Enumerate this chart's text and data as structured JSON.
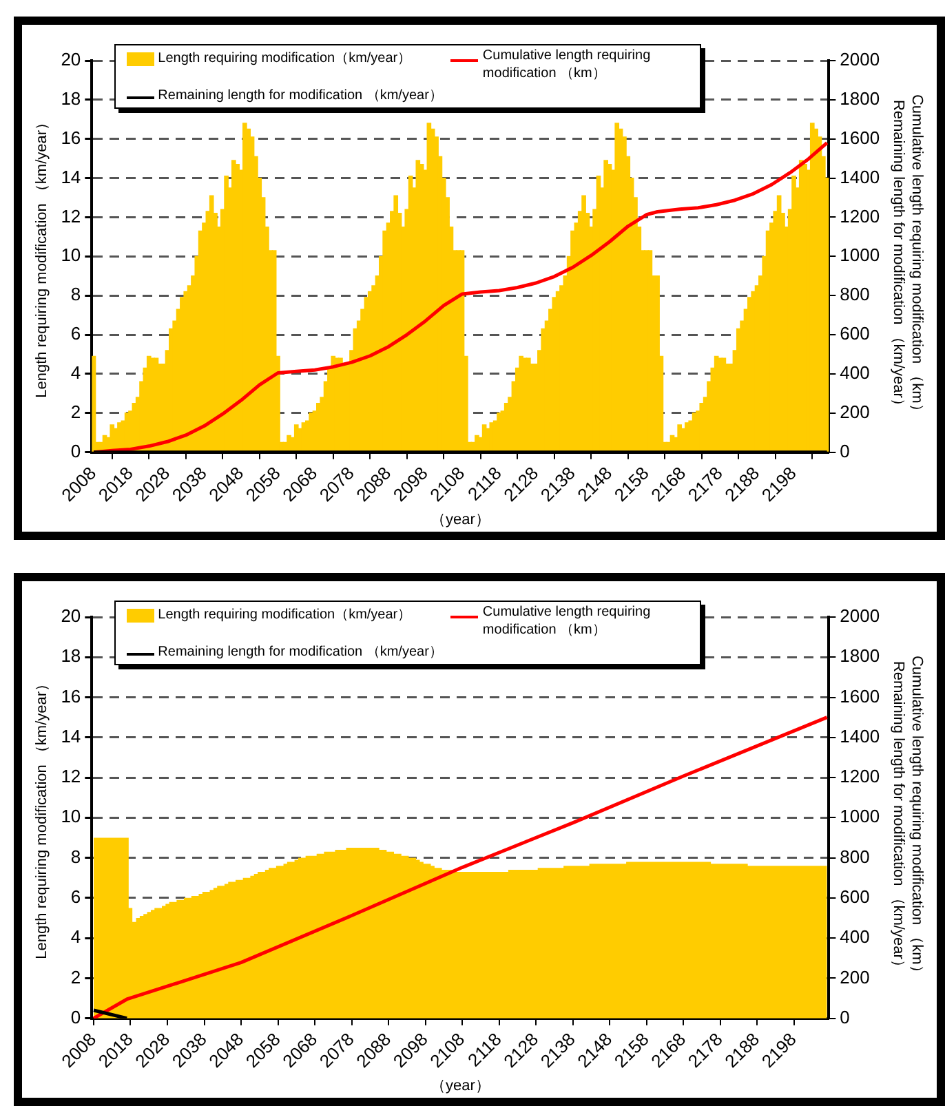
{
  "chart_data": [
    {
      "type": "bar",
      "xlabel": "（year）",
      "ylabel": "Length requiring modification （km/year）",
      "y2label": "Cumulative length requiring modification （km）\nRemaining length for modification （km/year）",
      "x": [
        2008,
        2009,
        2010,
        2011,
        2012,
        2013,
        2014,
        2015,
        2016,
        2017,
        2018,
        2019,
        2020,
        2021,
        2022,
        2023,
        2024,
        2025,
        2026,
        2027,
        2028,
        2029,
        2030,
        2031,
        2032,
        2033,
        2034,
        2035,
        2036,
        2037,
        2038,
        2039,
        2040,
        2041,
        2042,
        2043,
        2044,
        2045,
        2046,
        2047,
        2048,
        2049,
        2050,
        2051,
        2052,
        2053,
        2054,
        2055,
        2056,
        2057,
        2058,
        2059,
        2060,
        2061,
        2062,
        2063,
        2064,
        2065,
        2066,
        2067,
        2068,
        2069,
        2070,
        2071,
        2072,
        2073,
        2074,
        2075,
        2076,
        2077,
        2078,
        2079,
        2080,
        2081,
        2082,
        2083,
        2084,
        2085,
        2086,
        2087,
        2088,
        2089,
        2090,
        2091,
        2092,
        2093,
        2094,
        2095,
        2096,
        2097,
        2098,
        2099,
        2100,
        2101,
        2102,
        2103,
        2104,
        2105,
        2106,
        2107,
        2108,
        2109,
        2110,
        2111,
        2112,
        2113,
        2114,
        2115,
        2116,
        2117,
        2118,
        2119,
        2120,
        2121,
        2122,
        2123,
        2124,
        2125,
        2126,
        2127,
        2128,
        2129,
        2130,
        2131,
        2132,
        2133,
        2134,
        2135,
        2136,
        2137,
        2138,
        2139,
        2140,
        2141,
        2142,
        2143,
        2144,
        2145,
        2146,
        2147,
        2148,
        2149,
        2150,
        2151,
        2152,
        2153,
        2154,
        2155,
        2156,
        2157,
        2158,
        2159,
        2160,
        2161,
        2162,
        2163,
        2164,
        2165,
        2166,
        2167,
        2168,
        2169,
        2170,
        2171,
        2172,
        2173,
        2174,
        2175,
        2176,
        2177,
        2178,
        2179,
        2180,
        2181,
        2182,
        2183,
        2184,
        2185,
        2186,
        2187,
        2188,
        2189,
        2190,
        2191,
        2192,
        2193,
        2194,
        2195,
        2196,
        2197,
        2198,
        2199,
        2200,
        2201,
        2202,
        2203,
        2204,
        2205,
        2206,
        2207
      ],
      "series": [
        {
          "name": "Length requiring modification（km/year）",
          "color": "#ffcc00",
          "values": [
            4.9,
            0.5,
            0.5,
            0.85,
            0.75,
            1.4,
            1.2,
            1.5,
            1.6,
            2.0,
            2.1,
            2.5,
            2.8,
            3.6,
            4.3,
            4.9,
            4.8,
            4.8,
            4.5,
            4.5,
            5.2,
            6.3,
            6.7,
            7.3,
            7.9,
            8.2,
            8.5,
            9.0,
            10.0,
            11.3,
            11.7,
            12.3,
            13.1,
            12.2,
            11.5,
            12.4,
            14.1,
            13.5,
            14.9,
            14.7,
            14.4,
            16.8,
            16.5,
            16.1,
            15.1,
            14.0,
            13.0,
            11.5,
            10.3,
            10.3,
            4.9,
            0.5,
            0.5,
            0.85,
            0.75,
            1.4,
            1.2,
            1.5,
            1.6,
            2.0,
            2.1,
            2.5,
            2.8,
            3.6,
            4.3,
            4.9,
            4.8,
            4.8,
            4.5,
            4.5,
            5.2,
            6.3,
            6.7,
            7.3,
            7.9,
            8.2,
            8.5,
            9.0,
            10.0,
            11.3,
            11.7,
            12.3,
            13.1,
            12.2,
            11.5,
            12.4,
            14.1,
            13.5,
            14.9,
            14.7,
            14.4,
            16.8,
            16.5,
            16.1,
            15.1,
            14.0,
            13.0,
            11.5,
            10.3,
            10.3,
            10.3,
            4.9,
            0.5,
            0.5,
            0.85,
            0.75,
            1.4,
            1.2,
            1.5,
            1.6,
            2.0,
            2.1,
            2.5,
            2.8,
            3.6,
            4.3,
            4.9,
            4.8,
            4.8,
            4.5,
            4.5,
            5.2,
            6.3,
            6.7,
            7.3,
            7.9,
            8.2,
            8.5,
            9.0,
            10.0,
            11.3,
            11.7,
            12.3,
            13.1,
            12.2,
            11.5,
            12.4,
            14.1,
            13.5,
            14.9,
            14.7,
            14.4,
            16.8,
            16.5,
            16.1,
            15.1,
            14.0,
            13.0,
            11.5,
            10.3,
            10.3,
            10.3,
            9.0,
            9.0,
            4.9,
            0.5,
            0.5,
            0.85,
            0.75,
            1.4,
            1.2,
            1.5,
            1.6,
            2.0,
            2.1,
            2.5,
            2.8,
            3.6,
            4.3,
            4.9,
            4.8,
            4.8,
            4.5,
            4.5,
            5.2,
            6.3,
            6.7,
            7.3,
            7.9,
            8.2,
            8.5,
            9.0,
            10.0,
            11.3,
            11.7,
            12.3,
            13.1,
            12.2,
            11.5,
            12.4,
            14.1,
            13.5,
            14.9,
            14.7,
            14.4,
            16.8,
            16.5,
            16.1,
            15.1,
            14.0
          ]
        },
        {
          "name": "Remaining length for modification （km/year）",
          "type": "line",
          "axis": "y2",
          "color": "#000000",
          "x": [
            2008,
            2207
          ],
          "values": [
            0,
            0
          ]
        },
        {
          "name": "Cumulative length requiring modification （km）",
          "type": "line",
          "axis": "y2",
          "color": "#ff0000",
          "x": [
            2008,
            2013,
            2018,
            2023,
            2028,
            2033,
            2038,
            2043,
            2048,
            2053,
            2058,
            2063,
            2068,
            2073,
            2078,
            2083,
            2088,
            2093,
            2098,
            2103,
            2108,
            2113,
            2118,
            2123,
            2128,
            2133,
            2138,
            2143,
            2148,
            2153,
            2158,
            2161,
            2167,
            2172,
            2177,
            2182,
            2187,
            2192,
            2197,
            2202,
            2207
          ],
          "values": [
            0,
            8,
            15,
            31,
            54,
            87,
            134,
            195,
            265,
            344,
            405,
            413,
            420,
            436,
            459,
            492,
            539,
            600,
            670,
            749,
            808,
            818,
            825,
            841,
            864,
            897,
            944,
            1005,
            1075,
            1154,
            1213,
            1228,
            1241,
            1248,
            1264,
            1287,
            1320,
            1367,
            1428,
            1498,
            1580
          ]
        }
      ],
      "xlim": [
        2007.5,
        2207.5
      ],
      "xticks": [
        2008,
        2018,
        2028,
        2038,
        2048,
        2058,
        2068,
        2078,
        2088,
        2098,
        2108,
        2118,
        2128,
        2138,
        2148,
        2158,
        2168,
        2178,
        2188,
        2198
      ],
      "ylim": [
        0,
        20
      ],
      "yticks": [
        0,
        2,
        4,
        6,
        8,
        10,
        12,
        14,
        16,
        18,
        20
      ],
      "y2lim": [
        0,
        2000
      ],
      "y2ticks": [
        0,
        200,
        400,
        600,
        800,
        1000,
        1200,
        1400,
        1600,
        1800,
        2000
      ],
      "grid": "y",
      "legend": "top",
      "marker": "none"
    },
    {
      "type": "area",
      "xlabel": "（year）",
      "ylabel": "Length requiring modification （km/year）",
      "y2label": "Cumulative length requiring modification （km）\nRemaining length for modification （km/year）",
      "x": [
        2008,
        2009,
        2010,
        2011,
        2012,
        2013,
        2014,
        2015,
        2016,
        2017,
        2018,
        2019,
        2020,
        2021,
        2022,
        2023,
        2024,
        2025,
        2026,
        2027,
        2028,
        2029,
        2030,
        2031,
        2032,
        2033,
        2034,
        2035,
        2036,
        2037,
        2038,
        2039,
        2040,
        2041,
        2042,
        2043,
        2044,
        2045,
        2046,
        2047,
        2048,
        2049,
        2050,
        2051,
        2052,
        2053,
        2054,
        2055,
        2056,
        2057,
        2058,
        2059,
        2060,
        2061,
        2062,
        2063,
        2064,
        2065,
        2066,
        2067,
        2068,
        2069,
        2070,
        2071,
        2072,
        2073,
        2074,
        2075,
        2076,
        2077,
        2078,
        2079,
        2080,
        2081,
        2082,
        2083,
        2084,
        2085,
        2086,
        2087,
        2088,
        2089,
        2090,
        2091,
        2092,
        2093,
        2094,
        2095,
        2096,
        2097,
        2098,
        2099,
        2100,
        2101,
        2102,
        2103,
        2104,
        2105,
        2106,
        2107,
        2108,
        2109,
        2110,
        2111,
        2112,
        2113,
        2114,
        2115,
        2116,
        2117,
        2118,
        2119,
        2120,
        2121,
        2122,
        2123,
        2124,
        2125,
        2126,
        2127,
        2128,
        2129,
        2130,
        2131,
        2132,
        2133,
        2134,
        2135,
        2136,
        2137,
        2138,
        2139,
        2140,
        2141,
        2142,
        2143,
        2144,
        2145,
        2146,
        2147,
        2148,
        2149,
        2150,
        2151,
        2152,
        2153,
        2154,
        2155,
        2156,
        2157,
        2158,
        2159,
        2160,
        2161,
        2162,
        2163,
        2164,
        2165,
        2166,
        2167,
        2168,
        2169,
        2170,
        2171,
        2172,
        2173,
        2174,
        2175,
        2176,
        2177,
        2178,
        2179,
        2180,
        2181,
        2182,
        2183,
        2184,
        2185,
        2186,
        2187,
        2188,
        2189,
        2190,
        2191,
        2192,
        2193,
        2194,
        2195,
        2196,
        2197,
        2198,
        2199,
        2200,
        2201,
        2202,
        2203,
        2204,
        2205,
        2206,
        2207
      ],
      "series": [
        {
          "name": "Length requiring modification（km/year）",
          "color": "#ffcc00",
          "values": [
            9.0,
            9.0,
            9.0,
            9.0,
            9.0,
            9.0,
            9.0,
            9.0,
            9.0,
            9.0,
            5.5,
            4.8,
            5.0,
            5.1,
            5.2,
            5.3,
            5.4,
            5.5,
            5.5,
            5.6,
            5.7,
            5.8,
            5.8,
            5.9,
            5.9,
            6.0,
            6.0,
            6.1,
            6.1,
            6.2,
            6.3,
            6.3,
            6.4,
            6.5,
            6.6,
            6.6,
            6.7,
            6.8,
            6.8,
            6.9,
            6.9,
            7.0,
            7.0,
            7.1,
            7.2,
            7.3,
            7.3,
            7.4,
            7.5,
            7.5,
            7.6,
            7.6,
            7.7,
            7.8,
            7.8,
            7.9,
            8.0,
            8.0,
            8.1,
            8.1,
            8.1,
            8.2,
            8.2,
            8.3,
            8.3,
            8.3,
            8.4,
            8.4,
            8.4,
            8.5,
            8.5,
            8.5,
            8.5,
            8.5,
            8.5,
            8.5,
            8.5,
            8.5,
            8.4,
            8.4,
            8.3,
            8.3,
            8.2,
            8.2,
            8.1,
            8.1,
            8.0,
            8.0,
            7.9,
            7.8,
            7.7,
            7.7,
            7.6,
            7.5,
            7.5,
            7.4,
            7.4,
            7.4,
            7.3,
            7.3,
            7.3,
            7.3,
            7.3,
            7.3,
            7.3,
            7.3,
            7.3,
            7.3,
            7.3,
            7.3,
            7.3,
            7.3,
            7.3,
            7.4,
            7.4,
            7.4,
            7.4,
            7.4,
            7.4,
            7.4,
            7.4,
            7.5,
            7.5,
            7.5,
            7.5,
            7.5,
            7.5,
            7.5,
            7.6,
            7.6,
            7.6,
            7.6,
            7.6,
            7.6,
            7.6,
            7.7,
            7.7,
            7.7,
            7.7,
            7.7,
            7.7,
            7.7,
            7.7,
            7.7,
            7.7,
            7.8,
            7.8,
            7.8,
            7.8,
            7.8,
            7.8,
            7.8,
            7.8,
            7.8,
            7.8,
            7.8,
            7.8,
            7.8,
            7.8,
            7.8,
            7.8,
            7.8,
            7.8,
            7.8,
            7.8,
            7.8,
            7.8,
            7.8,
            7.7,
            7.7,
            7.7,
            7.7,
            7.7,
            7.7,
            7.7,
            7.7,
            7.7,
            7.7,
            7.6,
            7.6,
            7.6,
            7.6,
            7.6,
            7.6,
            7.6,
            7.6,
            7.6,
            7.6,
            7.6,
            7.6,
            7.6,
            7.6,
            7.6,
            7.6,
            7.6,
            7.6,
            7.6,
            7.6,
            7.6,
            7.6
          ]
        },
        {
          "name": "Remaining length for modification （km/year）",
          "type": "line",
          "axis": "y2",
          "color": "#000000",
          "x": [
            2008,
            2017
          ],
          "values": [
            40,
            0
          ]
        },
        {
          "name": "Cumulative length requiring modification （km）",
          "type": "line",
          "axis": "y2",
          "color": "#ff0000",
          "x": [
            2008,
            2017,
            2048,
            2078,
            2108,
            2138,
            2168,
            2207
          ],
          "values": [
            0,
            95,
            278,
            512,
            752,
            974,
            1207,
            1500
          ]
        }
      ],
      "xlim": [
        2007.5,
        2207.5
      ],
      "xticks": [
        2008,
        2018,
        2028,
        2038,
        2048,
        2058,
        2068,
        2078,
        2088,
        2098,
        2108,
        2118,
        2128,
        2138,
        2148,
        2158,
        2168,
        2178,
        2188,
        2198
      ],
      "ylim": [
        0,
        20
      ],
      "yticks": [
        0,
        2,
        4,
        6,
        8,
        10,
        12,
        14,
        16,
        18,
        20
      ],
      "y2lim": [
        0,
        2000
      ],
      "y2ticks": [
        0,
        200,
        400,
        600,
        800,
        1000,
        1200,
        1400,
        1600,
        1800,
        2000
      ],
      "grid": "y",
      "legend": "top",
      "marker": "none"
    }
  ]
}
